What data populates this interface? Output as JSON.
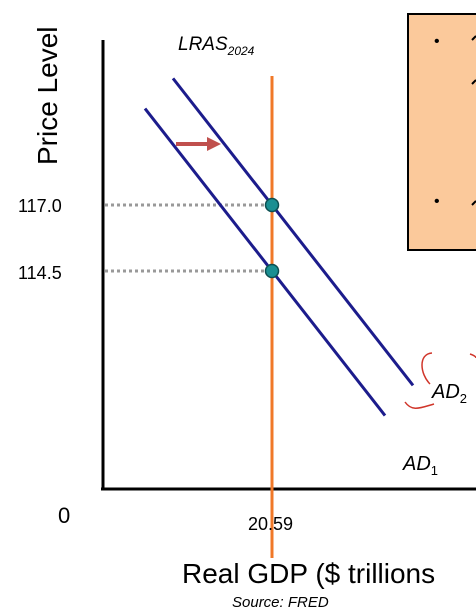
{
  "chart_data": {
    "type": "line",
    "ylabel": "Price Level",
    "xlabel": "Real GDP ($ trillions",
    "source": "Source: FRED",
    "origin_label": "0",
    "x_tick_label": "20.59",
    "y_tick_labels": [
      "117.0",
      "114.5"
    ],
    "lras": {
      "label_main": "LRAS",
      "label_sub": "2024",
      "x": 20.59
    },
    "curves": [
      {
        "label_main": "AD",
        "label_sub": "1",
        "equilibrium": {
          "x": 20.59,
          "y": 114.5
        }
      },
      {
        "label_main": "AD",
        "label_sub": "2",
        "equilibrium": {
          "x": 20.59,
          "y": 117.0
        }
      }
    ],
    "shift_arrow": "right",
    "note_bullets": [
      "•",
      "•"
    ],
    "colors": {
      "axis": "#000000",
      "ad": "#1c1c8c",
      "lras": "#f07828",
      "point": "#1a8f92",
      "arrow": "#c0504d",
      "guide": "#999999",
      "note_fill": "#fbc99b",
      "annotation": "#d0352a"
    }
  }
}
